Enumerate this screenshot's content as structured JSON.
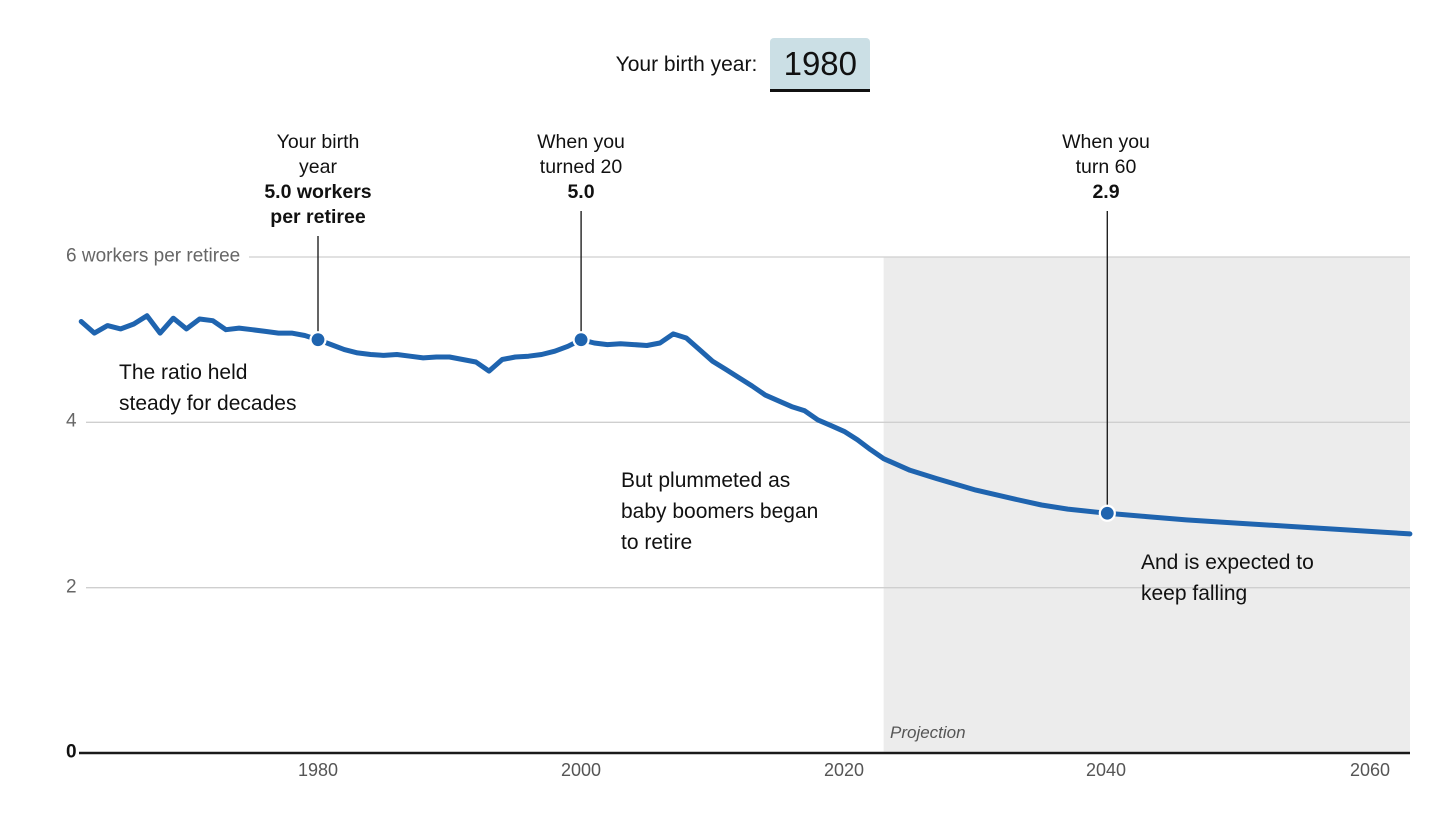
{
  "controls": {
    "birth_year_label": "Your birth year:",
    "birth_year_value": "1980"
  },
  "chart_data": {
    "type": "line",
    "title": "",
    "xlabel": "",
    "ylabel": "workers per retiree",
    "xlim": [
      1962,
      2063
    ],
    "ylim": [
      0,
      6.6
    ],
    "grid": true,
    "yticks": [
      6,
      4,
      2,
      0
    ],
    "ytick_labels": [
      "6 workers per retiree",
      "4",
      "2",
      "0"
    ],
    "xticks": [
      1980,
      2000,
      2020,
      2040,
      2060
    ],
    "xtick_labels": [
      "1980",
      "2000",
      "2020",
      "2040",
      "2060"
    ],
    "projection_start_year": 2023,
    "projection_label": "Projection",
    "series": [
      {
        "name": "workers per retiree",
        "points": [
          [
            1962,
            5.22
          ],
          [
            1963,
            5.08
          ],
          [
            1964,
            5.17
          ],
          [
            1965,
            5.13
          ],
          [
            1966,
            5.19
          ],
          [
            1967,
            5.29
          ],
          [
            1968,
            5.08
          ],
          [
            1969,
            5.26
          ],
          [
            1970,
            5.13
          ],
          [
            1971,
            5.25
          ],
          [
            1972,
            5.23
          ],
          [
            1973,
            5.12
          ],
          [
            1974,
            5.14
          ],
          [
            1975,
            5.12
          ],
          [
            1976,
            5.1
          ],
          [
            1977,
            5.08
          ],
          [
            1978,
            5.08
          ],
          [
            1979,
            5.05
          ],
          [
            1980,
            5.0
          ],
          [
            1981,
            4.94
          ],
          [
            1982,
            4.88
          ],
          [
            1983,
            4.84
          ],
          [
            1984,
            4.82
          ],
          [
            1985,
            4.81
          ],
          [
            1986,
            4.82
          ],
          [
            1987,
            4.8
          ],
          [
            1988,
            4.78
          ],
          [
            1989,
            4.79
          ],
          [
            1990,
            4.79
          ],
          [
            1991,
            4.76
          ],
          [
            1992,
            4.73
          ],
          [
            1993,
            4.62
          ],
          [
            1994,
            4.76
          ],
          [
            1995,
            4.79
          ],
          [
            1996,
            4.8
          ],
          [
            1997,
            4.82
          ],
          [
            1998,
            4.86
          ],
          [
            1999,
            4.92
          ],
          [
            2000,
            5.0
          ],
          [
            2001,
            4.96
          ],
          [
            2002,
            4.94
          ],
          [
            2003,
            4.95
          ],
          [
            2004,
            4.94
          ],
          [
            2005,
            4.93
          ],
          [
            2006,
            4.96
          ],
          [
            2007,
            5.07
          ],
          [
            2008,
            5.02
          ],
          [
            2009,
            4.88
          ],
          [
            2010,
            4.74
          ],
          [
            2011,
            4.64
          ],
          [
            2012,
            4.54
          ],
          [
            2013,
            4.44
          ],
          [
            2014,
            4.33
          ],
          [
            2015,
            4.26
          ],
          [
            2016,
            4.19
          ],
          [
            2017,
            4.14
          ],
          [
            2018,
            4.03
          ],
          [
            2019,
            3.96
          ],
          [
            2020,
            3.89
          ],
          [
            2021,
            3.79
          ],
          [
            2022,
            3.67
          ],
          [
            2023,
            3.56
          ],
          [
            2025,
            3.42
          ],
          [
            2027,
            3.32
          ],
          [
            2030,
            3.18
          ],
          [
            2033,
            3.07
          ],
          [
            2035,
            3.0
          ],
          [
            2037,
            2.95
          ],
          [
            2040,
            2.9
          ],
          [
            2043,
            2.86
          ],
          [
            2046,
            2.82
          ],
          [
            2050,
            2.78
          ],
          [
            2054,
            2.74
          ],
          [
            2058,
            2.7
          ],
          [
            2061,
            2.67
          ],
          [
            2063,
            2.65
          ]
        ]
      }
    ],
    "markers": [
      {
        "year": 1980,
        "value": 5.0,
        "label": "Your birth\nyear",
        "value_label": "5.0 workers\nper retiree"
      },
      {
        "year": 2000,
        "value": 5.0,
        "label": "When you\nturned 20",
        "value_label": "5.0"
      },
      {
        "year": 2040,
        "value": 2.9,
        "label": "When you\nturn 60",
        "value_label": "2.9"
      }
    ],
    "annotations": [
      {
        "text": "The ratio held\nsteady for decades"
      },
      {
        "text": "But plummeted as\nbaby boomers began\nto retire"
      },
      {
        "text": "And is expected to\nkeep falling"
      }
    ],
    "colors": {
      "line": "#1f64af",
      "projection_bg": "#ececec",
      "gridline": "#cfcfcf",
      "axis": "#1a1a1a",
      "marker_line": "#222222",
      "input_bg": "#cbdfe5"
    },
    "legend": "none"
  }
}
